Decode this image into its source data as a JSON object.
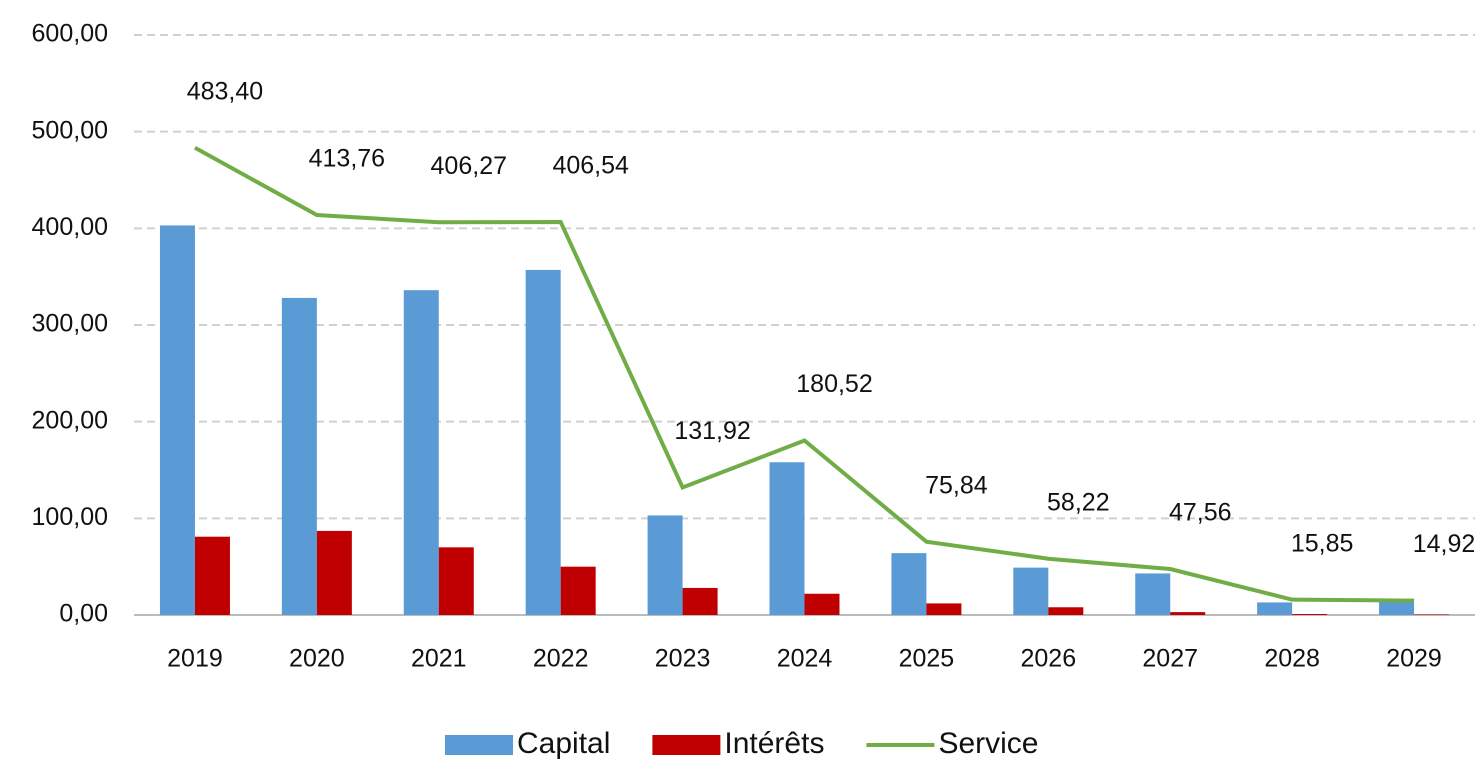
{
  "chart_data": {
    "type": "bar",
    "categories": [
      "2019",
      "2020",
      "2021",
      "2022",
      "2023",
      "2024",
      "2025",
      "2026",
      "2027",
      "2028",
      "2029"
    ],
    "series": [
      {
        "name": "Capital",
        "color": "#5b9bd5",
        "values": [
          403,
          328,
          336,
          357,
          103,
          158,
          64,
          49,
          43,
          13,
          14
        ]
      },
      {
        "name": "Intérêts",
        "color": "#c00000",
        "values": [
          81,
          87,
          70,
          50,
          28,
          22,
          12,
          8,
          3,
          1,
          0.5
        ]
      },
      {
        "name": "Service",
        "color": "#70ad47",
        "type": "line",
        "values": [
          483.4,
          413.76,
          406.27,
          406.54,
          131.92,
          180.52,
          75.84,
          58.22,
          47.56,
          15.85,
          14.92
        ],
        "value_labels": [
          "483,40",
          "413,76",
          "406,27",
          "406,54",
          "131,92",
          "180,52",
          "75,84",
          "58,22",
          "47,56",
          "15,85",
          "14,92"
        ]
      }
    ],
    "ylim": [
      0,
      600
    ],
    "yticks": [
      {
        "value": 0,
        "label": "0,00"
      },
      {
        "value": 100,
        "label": "100,00"
      },
      {
        "value": 200,
        "label": "200,00"
      },
      {
        "value": 300,
        "label": "300,00"
      },
      {
        "value": 400,
        "label": "400,00"
      },
      {
        "value": 500,
        "label": "500,00"
      },
      {
        "value": 600,
        "label": "600,00"
      }
    ],
    "grid": true,
    "legend": "bottom"
  }
}
